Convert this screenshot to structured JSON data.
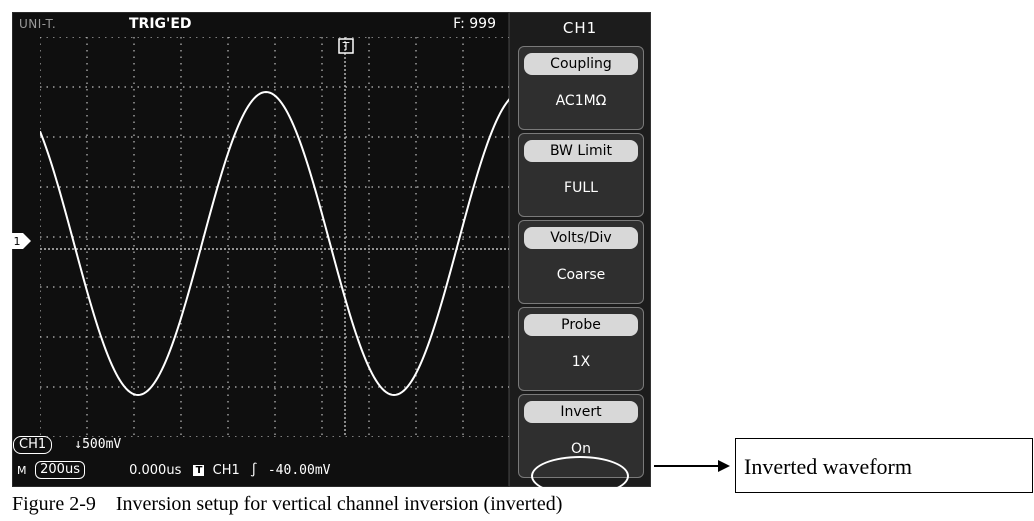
{
  "screen": {
    "brand": "UNI-T.",
    "trigger_status": "TRIG'ED",
    "frequency": "F: 999",
    "channel_marker": "1",
    "trigger_position_marker": "T",
    "status_line1": {
      "channel": "CH1",
      "volts_div": "↓500mV"
    },
    "status_line2": {
      "mode": "M",
      "timebase": "200us",
      "delay": "0.000us",
      "trigger_icon": "T",
      "trigger_channel": "CH1",
      "trigger_edge": "∫",
      "trigger_level": "-40.00mV"
    },
    "waveform": {
      "description_data": "inverted sine",
      "cycles_visible": 1.9,
      "trace_color": "#ffffff"
    },
    "grid_color": "#bfbfbf"
  },
  "menu": {
    "title": "CH1",
    "items": [
      {
        "label": "Coupling",
        "value": "AC1MΩ"
      },
      {
        "label": "BW Limit",
        "value": "FULL"
      },
      {
        "label": "Volts/Div",
        "value": "Coarse"
      },
      {
        "label": "Probe",
        "value": "1X"
      },
      {
        "label": "Invert",
        "value": "On"
      }
    ]
  },
  "callout": {
    "text": "Inverted waveform"
  },
  "caption": "Figure 2-9    Inversion setup for vertical channel inversion (inverted)"
}
